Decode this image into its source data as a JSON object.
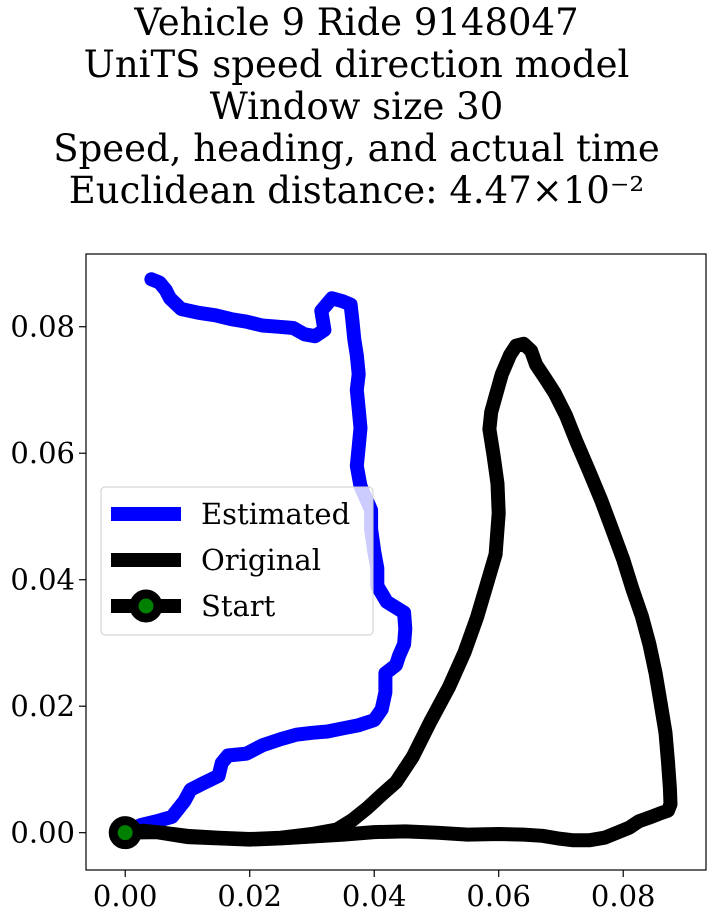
{
  "chart_data": {
    "type": "line",
    "title_lines": [
      "Vehicle 9 Ride 9148047",
      "UniTS speed direction model",
      "Window size 30",
      "Speed, heading, and actual time",
      "Euclidean distance: 4.47×10⁻²"
    ],
    "xlabel": "",
    "ylabel": "",
    "xlim": [
      -0.0063,
      0.0933
    ],
    "ylim": [
      -0.0059,
      0.0915
    ],
    "xticks": [
      {
        "value": 0.0,
        "label": "0.00"
      },
      {
        "value": 0.02,
        "label": "0.02"
      },
      {
        "value": 0.04,
        "label": "0.04"
      },
      {
        "value": 0.06,
        "label": "0.06"
      },
      {
        "value": 0.08,
        "label": "0.08"
      }
    ],
    "yticks": [
      {
        "value": 0.0,
        "label": "0.00"
      },
      {
        "value": 0.02,
        "label": "0.02"
      },
      {
        "value": 0.04,
        "label": "0.04"
      },
      {
        "value": 0.06,
        "label": "0.06"
      },
      {
        "value": 0.08,
        "label": "0.08"
      }
    ],
    "grid": false,
    "legend_position": "center-left",
    "series": [
      {
        "name": "Estimated",
        "color": "#0000ff",
        "points": [
          [
            0.0,
            0.0
          ],
          [
            0.0025,
            0.0012
          ],
          [
            0.005,
            0.0018
          ],
          [
            0.0075,
            0.0025
          ],
          [
            0.0095,
            0.005
          ],
          [
            0.0105,
            0.0068
          ],
          [
            0.0125,
            0.0078
          ],
          [
            0.015,
            0.009
          ],
          [
            0.0155,
            0.011
          ],
          [
            0.0165,
            0.0122
          ],
          [
            0.0195,
            0.0125
          ],
          [
            0.022,
            0.0138
          ],
          [
            0.025,
            0.0148
          ],
          [
            0.0275,
            0.0155
          ],
          [
            0.03,
            0.0158
          ],
          [
            0.0325,
            0.016
          ],
          [
            0.035,
            0.0165
          ],
          [
            0.0375,
            0.017
          ],
          [
            0.04,
            0.0178
          ],
          [
            0.0412,
            0.0195
          ],
          [
            0.0418,
            0.0222
          ],
          [
            0.0418,
            0.0252
          ],
          [
            0.0435,
            0.0265
          ],
          [
            0.044,
            0.028
          ],
          [
            0.0448,
            0.0298
          ],
          [
            0.045,
            0.0322
          ],
          [
            0.0448,
            0.0348
          ],
          [
            0.042,
            0.0365
          ],
          [
            0.0405,
            0.039
          ],
          [
            0.0405,
            0.0418
          ],
          [
            0.04,
            0.0445
          ],
          [
            0.0395,
            0.048
          ],
          [
            0.0395,
            0.051
          ],
          [
            0.0378,
            0.0548
          ],
          [
            0.0372,
            0.058
          ],
          [
            0.0375,
            0.061
          ],
          [
            0.0378,
            0.064
          ],
          [
            0.0375,
            0.067
          ],
          [
            0.0372,
            0.07
          ],
          [
            0.0375,
            0.0725
          ],
          [
            0.0372,
            0.0755
          ],
          [
            0.0368,
            0.078
          ],
          [
            0.0365,
            0.081
          ],
          [
            0.0362,
            0.0835
          ],
          [
            0.035,
            0.084
          ],
          [
            0.0332,
            0.0845
          ],
          [
            0.0315,
            0.0825
          ],
          [
            0.032,
            0.0795
          ],
          [
            0.0305,
            0.0785
          ],
          [
            0.0288,
            0.0788
          ],
          [
            0.027,
            0.0798
          ],
          [
            0.0245,
            0.08
          ],
          [
            0.022,
            0.0802
          ],
          [
            0.0195,
            0.0808
          ],
          [
            0.017,
            0.0812
          ],
          [
            0.0145,
            0.0818
          ],
          [
            0.0118,
            0.0822
          ],
          [
            0.009,
            0.0828
          ],
          [
            0.0072,
            0.0845
          ],
          [
            0.0065,
            0.0858
          ],
          [
            0.0055,
            0.087
          ],
          [
            0.0042,
            0.0875
          ]
        ]
      },
      {
        "name": "Original",
        "color": "#000000",
        "points": [
          [
            0.0,
            0.0
          ],
          [
            0.003,
            0.0003
          ],
          [
            0.006,
            0.0
          ],
          [
            0.01,
            -0.0005
          ],
          [
            0.015,
            -0.0008
          ],
          [
            0.02,
            -0.001
          ],
          [
            0.025,
            -0.0008
          ],
          [
            0.03,
            -0.0002
          ],
          [
            0.034,
            0.0005
          ],
          [
            0.0365,
            0.002
          ],
          [
            0.039,
            0.004
          ],
          [
            0.0412,
            0.006
          ],
          [
            0.0435,
            0.008
          ],
          [
            0.0462,
            0.012
          ],
          [
            0.049,
            0.0175
          ],
          [
            0.052,
            0.023
          ],
          [
            0.0545,
            0.0285
          ],
          [
            0.0565,
            0.034
          ],
          [
            0.058,
            0.039
          ],
          [
            0.0595,
            0.044
          ],
          [
            0.06,
            0.0505
          ],
          [
            0.0598,
            0.0552
          ],
          [
            0.0592,
            0.0595
          ],
          [
            0.0585,
            0.0638
          ],
          [
            0.0588,
            0.0665
          ],
          [
            0.0595,
            0.069
          ],
          [
            0.0605,
            0.0725
          ],
          [
            0.0618,
            0.0755
          ],
          [
            0.0628,
            0.077
          ],
          [
            0.064,
            0.0773
          ],
          [
            0.0652,
            0.0762
          ],
          [
            0.066,
            0.074
          ],
          [
            0.0675,
            0.0718
          ],
          [
            0.069,
            0.0695
          ],
          [
            0.0708,
            0.066
          ],
          [
            0.0725,
            0.0618
          ],
          [
            0.0745,
            0.0572
          ],
          [
            0.0765,
            0.0525
          ],
          [
            0.0782,
            0.048
          ],
          [
            0.08,
            0.0432
          ],
          [
            0.0815,
            0.0385
          ],
          [
            0.083,
            0.0342
          ],
          [
            0.0842,
            0.0298
          ],
          [
            0.0852,
            0.0252
          ],
          [
            0.086,
            0.0205
          ],
          [
            0.0868,
            0.0158
          ],
          [
            0.0872,
            0.0112
          ],
          [
            0.0875,
            0.007
          ],
          [
            0.0876,
            0.0045
          ],
          [
            0.0872,
            0.0035
          ],
          [
            0.0858,
            0.003
          ],
          [
            0.0845,
            0.0025
          ],
          [
            0.0825,
            0.0018
          ],
          [
            0.081,
            0.0008
          ],
          [
            0.079,
            0.0
          ],
          [
            0.077,
            -0.0008
          ],
          [
            0.0745,
            -0.0012
          ],
          [
            0.072,
            -0.0012
          ],
          [
            0.0695,
            -0.0009
          ],
          [
            0.067,
            -0.0005
          ],
          [
            0.064,
            -0.0003
          ],
          [
            0.06,
            -0.0002
          ],
          [
            0.055,
            -0.0003
          ],
          [
            0.05,
            0.0
          ],
          [
            0.045,
            0.0002
          ],
          [
            0.04,
            0.0001
          ],
          [
            0.035,
            -0.0003
          ],
          [
            0.03,
            -0.0006
          ],
          [
            0.025,
            -0.0009
          ],
          [
            0.02,
            -0.0011
          ],
          [
            0.015,
            -0.0009
          ],
          [
            0.01,
            -0.0007
          ],
          [
            0.005,
            0.0001
          ],
          [
            0.0,
            0.0
          ]
        ]
      }
    ],
    "markers": [
      {
        "name": "Start",
        "x": 0.0,
        "y": 0.0,
        "face_color": "#008000",
        "edge_color": "#000000"
      }
    ],
    "legend": [
      {
        "label": "Estimated",
        "style": "line",
        "color": "#0000ff"
      },
      {
        "label": "Original",
        "style": "line",
        "color": "#000000"
      },
      {
        "label": "Start",
        "style": "line-marker",
        "color": "#000000",
        "marker_face": "#008000"
      }
    ]
  }
}
